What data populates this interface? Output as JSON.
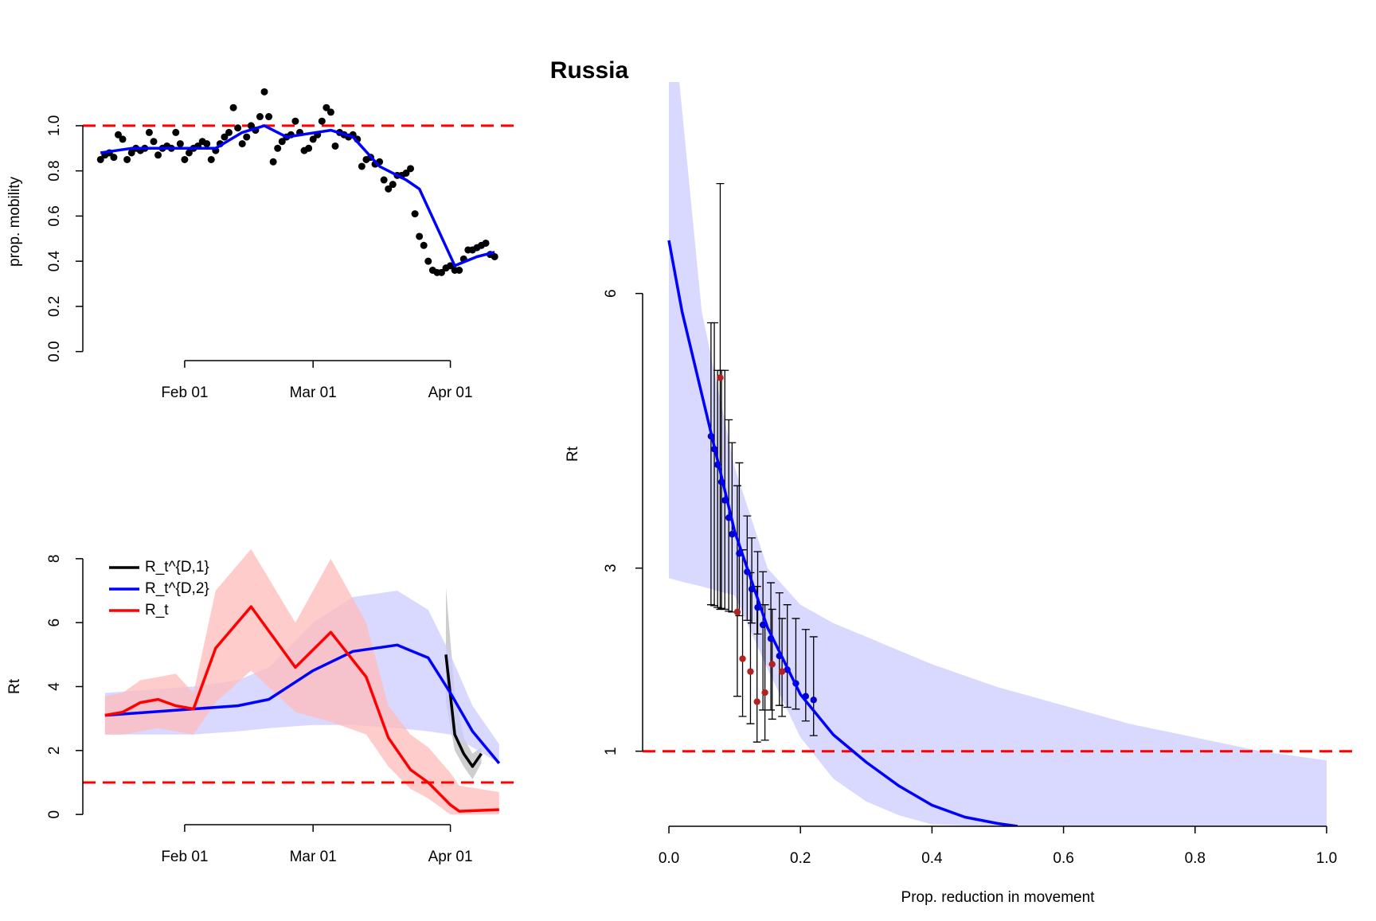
{
  "title": "Russia",
  "chart_data": [
    {
      "type": "scatter-line",
      "y_label": "prop. mobility",
      "xlim": [
        "Jan 09",
        "Apr 16"
      ],
      "ylim": [
        -0.04,
        1.19
      ],
      "xticks": [
        "Feb 01",
        "Mar 01",
        "Apr 01"
      ],
      "yticks": [
        {
          "value": 0,
          "label": "0.0"
        },
        {
          "value": 0.2,
          "label": "0.2"
        },
        {
          "value": 0.4,
          "label": "0.4"
        },
        {
          "value": 0.6,
          "label": "0.6"
        },
        {
          "value": 0.8,
          "label": "0.8"
        },
        {
          "value": 1,
          "label": "1.0"
        }
      ],
      "hline": 1,
      "hline_color": "#ff0000",
      "series": [
        {
          "kind": "points",
          "color": "#000000",
          "x": [
            "Jan 13",
            "Jan 14",
            "Jan 15",
            "Jan 16",
            "Jan 17",
            "Jan 18",
            "Jan 19",
            "Jan 20",
            "Jan 21",
            "Jan 22",
            "Jan 23",
            "Jan 24",
            "Jan 25",
            "Jan 26",
            "Jan 27",
            "Jan 28",
            "Jan 29",
            "Jan 30",
            "Jan 31",
            "Feb 01",
            "Feb 02",
            "Feb 03",
            "Feb 04",
            "Feb 05",
            "Feb 06",
            "Feb 07",
            "Feb 08",
            "Feb 09",
            "Feb 10",
            "Feb 11",
            "Feb 12",
            "Feb 13",
            "Feb 14",
            "Feb 15",
            "Feb 16",
            "Feb 17",
            "Feb 18",
            "Feb 19",
            "Feb 20",
            "Feb 21",
            "Feb 22",
            "Feb 23",
            "Feb 24",
            "Feb 25",
            "Feb 26",
            "Feb 27",
            "Feb 28",
            "Feb 29",
            "Mar 01",
            "Mar 02",
            "Mar 03",
            "Mar 04",
            "Mar 05",
            "Mar 06",
            "Mar 07",
            "Mar 08",
            "Mar 09",
            "Mar 10",
            "Mar 11",
            "Mar 12",
            "Mar 13",
            "Mar 14",
            "Mar 15",
            "Mar 16",
            "Mar 17",
            "Mar 18",
            "Mar 19",
            "Mar 20",
            "Mar 21",
            "Mar 22",
            "Mar 23",
            "Mar 24",
            "Mar 25",
            "Mar 26",
            "Mar 27",
            "Mar 28",
            "Mar 29",
            "Mar 30",
            "Mar 31",
            "Apr 01",
            "Apr 02",
            "Apr 03",
            "Apr 04",
            "Apr 05",
            "Apr 06",
            "Apr 07",
            "Apr 08",
            "Apr 09",
            "Apr 10",
            "Apr 11"
          ],
          "values": [
            0.85,
            0.87,
            0.88,
            0.86,
            0.96,
            0.94,
            0.85,
            0.88,
            0.9,
            0.89,
            0.9,
            0.97,
            0.93,
            0.87,
            0.9,
            0.91,
            0.9,
            0.97,
            0.92,
            0.85,
            0.88,
            0.9,
            0.91,
            0.93,
            0.92,
            0.85,
            0.89,
            0.92,
            0.95,
            0.97,
            1.08,
            0.99,
            0.92,
            0.95,
            1.0,
            0.98,
            1.04,
            1.15,
            1.04,
            0.84,
            0.9,
            0.93,
            0.95,
            0.96,
            1.02,
            0.97,
            0.89,
            0.9,
            0.94,
            0.96,
            1.02,
            1.08,
            1.06,
            0.91,
            0.97,
            0.96,
            0.95,
            0.96,
            0.94,
            0.82,
            0.85,
            0.86,
            0.83,
            0.84,
            0.76,
            0.72,
            0.74,
            0.78,
            0.78,
            0.79,
            0.81,
            0.61,
            0.51,
            0.47,
            0.4,
            0.36,
            0.35,
            0.35,
            0.37,
            0.38,
            0.36,
            0.36,
            0.41,
            0.45,
            0.45,
            0.46,
            0.47,
            0.48,
            0.43,
            0.42
          ]
        },
        {
          "kind": "line",
          "color": "#0000ff",
          "x": [
            "Jan 13",
            "Jan 20",
            "Jan 31",
            "Feb 08",
            "Feb 14",
            "Feb 19",
            "Feb 24",
            "Mar 05",
            "Mar 10",
            "Mar 16",
            "Mar 22",
            "Mar 25",
            "Apr 02",
            "Apr 07",
            "Apr 11"
          ],
          "values": [
            0.88,
            0.9,
            0.9,
            0.9,
            0.97,
            1.0,
            0.95,
            0.98,
            0.95,
            0.82,
            0.76,
            0.72,
            0.38,
            0.42,
            0.44
          ]
        }
      ]
    },
    {
      "type": "band-line",
      "y_label": "Rt",
      "xlim": [
        "Jan 09",
        "Apr 16"
      ],
      "ylim": [
        -0.32,
        8.32
      ],
      "xticks": [
        "Feb 01",
        "Mar 01",
        "Apr 01"
      ],
      "yticks": [
        0,
        2,
        4,
        6,
        8
      ],
      "hline": 1,
      "hline_color": "#ff0000",
      "legend": "top-left",
      "series": [
        {
          "name": "R_t^{D,1}",
          "color": "#000000",
          "band_color": "#bebebe",
          "x": [
            "Mar 31",
            "Apr 02",
            "Apr 04",
            "Apr 06",
            "Apr 08"
          ],
          "values": [
            5.0,
            2.5,
            1.9,
            1.5,
            1.9
          ],
          "lower": [
            3.5,
            2.0,
            1.5,
            1.1,
            1.6
          ],
          "upper": [
            7.1,
            3.8,
            2.4,
            1.9,
            2.1
          ]
        },
        {
          "name": "R_t^{D,2}",
          "color": "#0000ff",
          "band_color": "#ccccff",
          "x": [
            "Jan 14",
            "Jan 24",
            "Feb 03",
            "Feb 13",
            "Feb 20",
            "Mar 01",
            "Mar 10",
            "Mar 20",
            "Mar 27",
            "Apr 01",
            "Apr 06",
            "Apr 12"
          ],
          "values": [
            3.1,
            3.2,
            3.3,
            3.4,
            3.6,
            4.5,
            5.1,
            5.3,
            4.9,
            3.8,
            2.6,
            1.6
          ],
          "lower": [
            2.5,
            2.5,
            2.5,
            2.6,
            2.7,
            2.8,
            2.8,
            2.7,
            2.6,
            2.5,
            2.1,
            1.6
          ],
          "upper": [
            3.8,
            3.9,
            4.0,
            4.2,
            4.6,
            6.0,
            6.8,
            7.0,
            6.4,
            5.0,
            3.4,
            2.2
          ]
        },
        {
          "name": "R_t",
          "color": "#ff0000",
          "band_color": "#ffbbbb",
          "x": [
            "Jan 14",
            "Jan 18",
            "Jan 22",
            "Jan 26",
            "Jan 30",
            "Feb 03",
            "Feb 08",
            "Feb 16",
            "Feb 26",
            "Mar 05",
            "Mar 13",
            "Mar 18",
            "Mar 23",
            "Mar 27",
            "Apr 01",
            "Apr 03",
            "Apr 12"
          ],
          "values": [
            3.1,
            3.2,
            3.5,
            3.6,
            3.4,
            3.3,
            5.2,
            6.5,
            4.6,
            5.7,
            4.3,
            2.4,
            1.4,
            1.0,
            0.3,
            0.1,
            0.15
          ],
          "lower": [
            2.5,
            2.5,
            2.6,
            2.7,
            2.6,
            2.5,
            3.5,
            4.5,
            3.2,
            2.9,
            2.5,
            1.5,
            0.8,
            0.5,
            0,
            0,
            0
          ],
          "upper": [
            3.7,
            3.8,
            4.2,
            4.3,
            4.4,
            3.8,
            7.0,
            8.3,
            6.0,
            8.0,
            6.0,
            3.4,
            2.5,
            2.1,
            1.3,
            0.9,
            0.7
          ]
        }
      ]
    },
    {
      "type": "dose-response",
      "x_label": "Prop. reduction in movement",
      "y_label": "Rt",
      "xlim": [
        -0.04,
        1.04
      ],
      "ylim": [
        0.18,
        8.31
      ],
      "xticks": [
        {
          "value": 0,
          "label": "0.0"
        },
        {
          "value": 0.2,
          "label": "0.2"
        },
        {
          "value": 0.4,
          "label": "0.4"
        },
        {
          "value": 0.6,
          "label": "0.6"
        },
        {
          "value": 0.8,
          "label": "0.8"
        },
        {
          "value": 1,
          "label": "1.0"
        }
      ],
      "yticks": [
        1,
        3,
        6
      ],
      "hline": 1,
      "hline_color": "#ff0000",
      "series": [
        {
          "kind": "band",
          "color": "#ccccff",
          "x": [
            0,
            0.02,
            0.05,
            0.1,
            0.15,
            0.2,
            0.25,
            0.3,
            0.35,
            0.4,
            0.5,
            0.6,
            0.7,
            0.8,
            0.9,
            1.0
          ],
          "lower": [
            2.89,
            2.85,
            2.8,
            2.7,
            1.9,
            1.15,
            0.7,
            0.45,
            0.3,
            0.2,
            0.18,
            0.18,
            0.18,
            0.18,
            0.18,
            0.18
          ],
          "upper": [
            9.5,
            8.0,
            5.8,
            4.1,
            3.0,
            2.6,
            2.4,
            2.25,
            2.1,
            1.95,
            1.7,
            1.5,
            1.3,
            1.15,
            1.0,
            0.9
          ]
        },
        {
          "kind": "errorpoints",
          "color": "#0000cd",
          "x": [
            0.064,
            0.069,
            0.074,
            0.08,
            0.085,
            0.091,
            0.096,
            0.107,
            0.119,
            0.126,
            0.135,
            0.143,
            0.155,
            0.168,
            0.18,
            0.193,
            0.208,
            0.22
          ],
          "values": [
            4.44,
            4.3,
            4.13,
            3.94,
            3.74,
            3.55,
            3.37,
            3.16,
            2.96,
            2.77,
            2.57,
            2.38,
            2.23,
            2.04,
            1.89,
            1.74,
            1.6,
            1.56
          ],
          "lower": [
            2.6,
            2.59,
            2.57,
            2.56,
            2.55,
            2.53,
            2.52,
            2.48,
            2.43,
            2.4,
            2.28,
            1.45,
            1.45,
            1.5,
            1.48,
            1.46,
            1.33,
            1.17
          ],
          "upper": [
            5.68,
            5.68,
            5.16,
            5.16,
            5.16,
            4.62,
            4.37,
            4.15,
            3.57,
            3.33,
            3.18,
            2.96,
            2.84,
            2.73,
            2.6,
            2.45,
            2.33,
            2.25
          ]
        },
        {
          "kind": "errorpoints",
          "color": "#b22222",
          "x": [
            0.078,
            0.104,
            0.112,
            0.124,
            0.134,
            0.146,
            0.157,
            0.172
          ],
          "values": [
            5.08,
            2.52,
            2.01,
            1.87,
            1.54,
            1.64,
            1.95,
            1.87
          ],
          "lower": [
            2.55,
            1.6,
            1.38,
            1.3,
            1.1,
            1.12,
            1.35,
            1.38
          ],
          "upper": [
            7.2,
            3.9,
            3.2,
            2.95,
            2.8,
            2.6,
            2.55,
            2.45
          ]
        },
        {
          "kind": "line",
          "color": "#0000ff",
          "x": [
            0,
            0.02,
            0.05,
            0.1,
            0.15,
            0.2,
            0.25,
            0.3,
            0.35,
            0.4,
            0.45,
            0.5,
            0.53
          ],
          "values": [
            6.58,
            5.8,
            4.9,
            3.4,
            2.35,
            1.62,
            1.18,
            0.88,
            0.62,
            0.41,
            0.28,
            0.21,
            0.18
          ]
        }
      ]
    }
  ]
}
